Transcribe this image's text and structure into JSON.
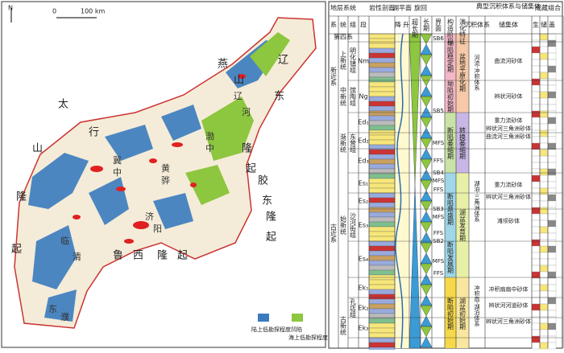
{
  "map": {
    "north": "N",
    "scale": [
      "0",
      "100 km"
    ],
    "labels": [
      "燕",
      "山",
      "辽",
      "东",
      "隆",
      "起",
      "太",
      "行",
      "山",
      "隆",
      "起",
      "鲁",
      "西",
      "隆",
      "起",
      "胶",
      "东",
      "隆",
      "起",
      "冀",
      "中",
      "黄",
      "骅",
      "济",
      "阳",
      "渤",
      "中",
      "辽",
      "河",
      "临",
      "清",
      "东",
      "濮"
    ],
    "legend": [
      "陆上低勘探程度凹陷",
      "海上低勘探程度凹陷"
    ]
  },
  "column": {
    "headers": {
      "system": "地层系统",
      "sys": "系",
      "ser": "统",
      "fm": "组",
      "mb": "段",
      "lithology": "岩性剖面",
      "lake": "湖平面",
      "down": "降",
      "up": "升",
      "cycle": "旋回",
      "super": "超长期",
      "long": "长期",
      "interface": "界面",
      "stage": "构造阶段",
      "feature": "演化特征",
      "deposit": "典型沉积体系与储集体",
      "dep_system": "沉积体系",
      "reservoir": "储集体",
      "play": "成藏组合",
      "source": "生",
      "res": "储",
      "seal": "盖"
    },
    "systems": [
      "第四系",
      "新近系",
      "古近系"
    ],
    "series": [
      "上新统",
      "中新统",
      "渐新统",
      "始新统",
      "古新统"
    ],
    "formations": [
      "明化镇组",
      "馆陶组",
      "东营组",
      "沙河街组",
      "孔店组"
    ],
    "members": [
      "Nm",
      "Ng",
      "Ed₁",
      "Ed₂",
      "Ed₃",
      "Es₁",
      "Es₂",
      "Es₃",
      "Es₄",
      "Ek₁",
      "Ek₂",
      "Ek₃"
    ],
    "interfaces": [
      "SB6",
      "SB5",
      "MFS",
      "FFS",
      "SB4",
      "MFS",
      "FFS",
      "SB3",
      "MFS",
      "FFS",
      "SB2",
      "MFS",
      "FFS"
    ],
    "stages": [
      "坳陷稳定期",
      "坳陷初始期",
      "断陷萎缩期",
      "断陷鼎盛期",
      "断陷发展期",
      "断陷初始期"
    ],
    "features": [
      "盆地平原化期",
      "转换萎缩期",
      "湖盆发育期",
      "湖盆初始期"
    ],
    "dep_systems": [
      "河流-冲积体系",
      "湖泊-三角洲体系",
      "冲积扇-湖泊体系"
    ],
    "reservoirs": [
      "曲流河砂体",
      "辫状河砂体",
      "重力流砂体",
      "辫状河三角洲砂体",
      "曲流河三角洲砂体",
      "重力流砂体",
      "辫状河三角洲砂体",
      "滩坝砂体",
      "冲积扇扇中砂体",
      "辫状河河道砂体",
      "辫状河三角洲砂体"
    ]
  }
}
